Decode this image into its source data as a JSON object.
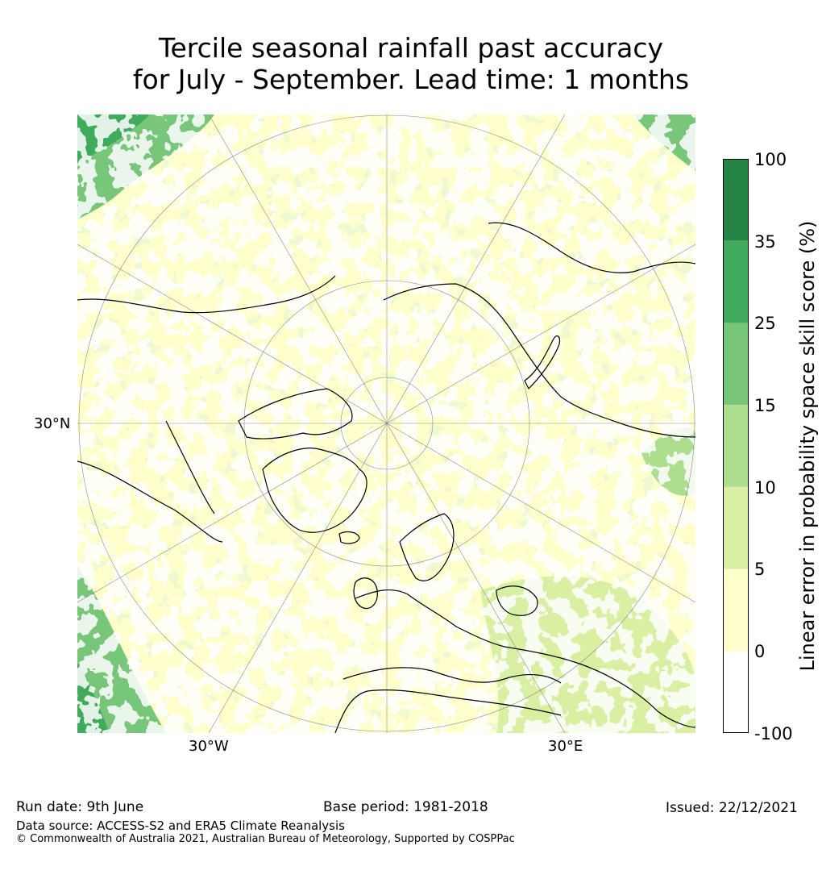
{
  "title": {
    "line1": "Tercile seasonal rainfall past accuracy",
    "line2": "for July - September. Lead time: 1 months"
  },
  "map_labels": {
    "lat": "30°N",
    "lon_west": "30°W",
    "lon_east": "30°E"
  },
  "colorbar": {
    "title": "Linear error in probability space skill score (%)",
    "ticks": [
      "100",
      "35",
      "25",
      "15",
      "10",
      "5",
      "0",
      "-100"
    ],
    "colors": [
      "#238443",
      "#41ab5d",
      "#78c679",
      "#addd8e",
      "#d9f0a3",
      "#ffffcc",
      "#ffffff"
    ]
  },
  "footer": {
    "run_date": "Run date: 9th June",
    "base_period": "Base period: 1981-2018",
    "issued": "Issued: 22/12/2021",
    "data_source": "Data source: ACCESS-S2 and ERA5 Climate Reanalysis",
    "copyright": "© Commonwealth of Australia 2021, Australian Bureau of Meteorology, Supported by COSPPac"
  }
}
